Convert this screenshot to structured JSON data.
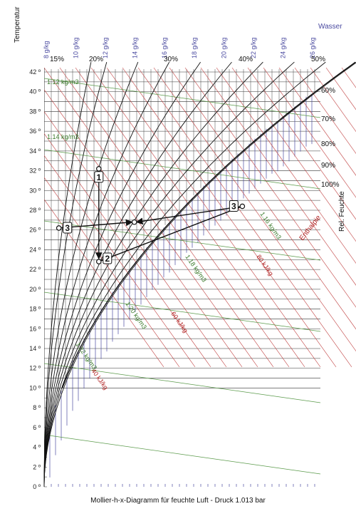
{
  "chart_data": {
    "type": "mollier-h-x",
    "title": "Mollier-h-x-Diagramm für feuchte Luft - Druck  1.013 bar",
    "ylabel": "Temperatur",
    "xlabel": "Wasser",
    "rh_label": "Rel. Feuchte",
    "enthalpy_label": "Enthalpie",
    "temperature_ticks": [
      "0 º",
      "2 º",
      "4 º",
      "6 º",
      "8 º",
      "10 º",
      "12 º",
      "14 º",
      "16 º",
      "18 º",
      "20 º",
      "22 º",
      "24 º",
      "26 º",
      "28 º",
      "30 º",
      "32 º",
      "34 º",
      "36 º",
      "38 º",
      "40 º",
      "42 º"
    ],
    "temperature_values": [
      0,
      2,
      4,
      6,
      8,
      10,
      12,
      14,
      16,
      18,
      20,
      22,
      24,
      26,
      28,
      30,
      32,
      34,
      36,
      38,
      40,
      42
    ],
    "moisture_ticks": [
      "8 g/kg",
      "10 g/kg",
      "12 g/kg",
      "14 g/kg",
      "16 g/kg",
      "18 g/kg",
      "20 g/kg",
      "22 g/kg",
      "24 g/kg",
      "26 g/kg"
    ],
    "moisture_values": [
      8,
      10,
      12,
      14,
      16,
      18,
      20,
      22,
      24,
      26
    ],
    "rh_top_labels": [
      "15%",
      "20%",
      "30%",
      "40%",
      "50%"
    ],
    "rh_right_labels": [
      "60%",
      "70%",
      "80%",
      "90%",
      "100%"
    ],
    "density_labels": [
      "1.12 kg/m3",
      "1.14 kg/m3",
      "1.16 kg/m3",
      "1.18 kg/m3",
      "1.20 kg/m3",
      "1.22 kg/m3"
    ],
    "enthalpy_labels": [
      "40 kJ/kg",
      "60 kJ/kg",
      "80 kJ/kg"
    ],
    "points": [
      {
        "label": "1",
        "t": 32.2,
        "x": 11.6
      },
      {
        "label": "2",
        "t": 22.8,
        "x": 11.6
      },
      {
        "label": "3",
        "t": 26.2,
        "x": 8.9
      },
      {
        "label": "3",
        "t": 28.4,
        "x": 21.3
      }
    ],
    "mix_point": {
      "t": 26.8,
      "x": 14.0
    },
    "ylim": [
      0,
      42
    ],
    "xlim": [
      8,
      26
    ]
  }
}
